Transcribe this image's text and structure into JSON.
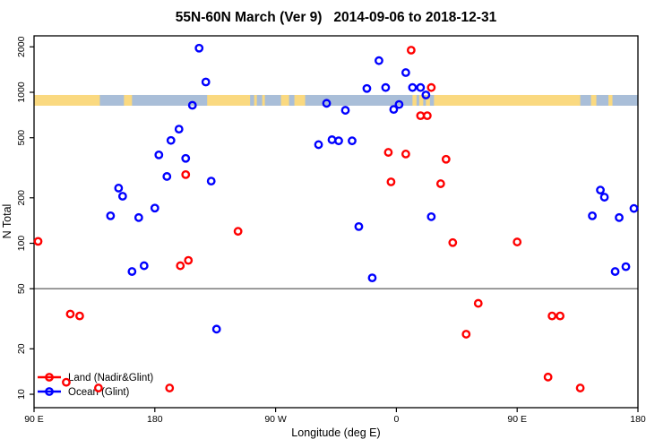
{
  "chart_data": {
    "type": "scatter",
    "title": "55N-60N March (Ver 9)   2014-09-06 to 2018-12-31",
    "xlabel": "Longitude (deg E)",
    "ylabel": "N Total",
    "y_scale": "log",
    "grid": false,
    "x_range": [
      90,
      540
    ],
    "y_range": [
      8.15,
      2365
    ],
    "x_ticks": [
      {
        "pos": 90,
        "label": "90 E"
      },
      {
        "pos": 180,
        "label": "180"
      },
      {
        "pos": 270,
        "label": "90 W"
      },
      {
        "pos": 360,
        "label": "0"
      },
      {
        "pos": 450,
        "label": "90 E"
      },
      {
        "pos": 540,
        "label": "180"
      }
    ],
    "y_ticks": [
      10,
      20,
      50,
      100,
      200,
      500,
      1000,
      2000
    ],
    "hline": {
      "value": 50,
      "color": "#7a7a7a"
    },
    "map_band": {
      "n_range": [
        815,
        960
      ],
      "land_color": "#FAD980",
      "ocean_color": "#A9BED8",
      "ocean_segments_deg": [
        [
          139,
          157
        ],
        [
          163,
          219
        ],
        [
          251,
          254
        ],
        [
          256,
          260
        ],
        [
          262,
          274
        ],
        [
          280,
          284
        ],
        [
          292,
          372
        ],
        [
          375,
          377
        ],
        [
          380,
          382
        ],
        [
          385,
          388
        ],
        [
          497,
          505
        ],
        [
          509,
          518
        ],
        [
          521,
          540
        ]
      ]
    },
    "legend_position": "bottom-left",
    "series": [
      {
        "name": "land",
        "label": "Land (Nadir&Glint)",
        "color": "#FF0000",
        "points": [
          [
            371,
            1900
          ],
          [
            386,
            1075
          ],
          [
            378,
            700
          ],
          [
            383,
            700
          ],
          [
            354,
            400
          ],
          [
            367,
            390
          ],
          [
            356,
            255
          ],
          [
            203,
            285
          ],
          [
            93,
            103
          ],
          [
            205,
            77
          ],
          [
            199,
            71
          ],
          [
            242,
            120
          ],
          [
            393,
            248
          ],
          [
            397,
            360
          ],
          [
            402,
            101
          ],
          [
            450,
            102
          ],
          [
            421,
            40
          ],
          [
            476,
            33
          ],
          [
            482,
            33
          ],
          [
            412,
            25
          ],
          [
            473,
            13
          ],
          [
            497,
            11
          ],
          [
            117,
            34
          ],
          [
            124,
            33
          ],
          [
            114,
            12
          ],
          [
            138,
            11
          ],
          [
            191,
            11
          ]
        ]
      },
      {
        "name": "ocean",
        "label": "Ocean (Glint)",
        "color": "#0000FF",
        "points": [
          [
            213,
            1960
          ],
          [
            218,
            1170
          ],
          [
            208,
            820
          ],
          [
            198,
            570
          ],
          [
            192,
            480
          ],
          [
            183,
            385
          ],
          [
            203,
            365
          ],
          [
            189,
            277
          ],
          [
            222,
            258
          ],
          [
            153,
            232
          ],
          [
            156,
            205
          ],
          [
            180,
            171
          ],
          [
            147,
            152
          ],
          [
            168,
            148
          ],
          [
            172,
            71
          ],
          [
            163,
            65
          ],
          [
            226,
            27
          ],
          [
            347,
            1620
          ],
          [
            367,
            1350
          ],
          [
            338,
            1060
          ],
          [
            352,
            1075
          ],
          [
            372,
            1075
          ],
          [
            378,
            1075
          ],
          [
            382,
            960
          ],
          [
            308,
            845
          ],
          [
            362,
            830
          ],
          [
            358,
            770
          ],
          [
            322,
            760
          ],
          [
            312,
            485
          ],
          [
            317,
            477
          ],
          [
            327,
            477
          ],
          [
            302,
            450
          ],
          [
            386,
            150
          ],
          [
            332,
            129
          ],
          [
            342,
            59
          ],
          [
            512,
            225
          ],
          [
            515,
            202
          ],
          [
            537,
            170
          ],
          [
            506,
            152
          ],
          [
            526,
            148
          ],
          [
            531,
            70
          ],
          [
            523,
            65
          ]
        ]
      }
    ]
  }
}
